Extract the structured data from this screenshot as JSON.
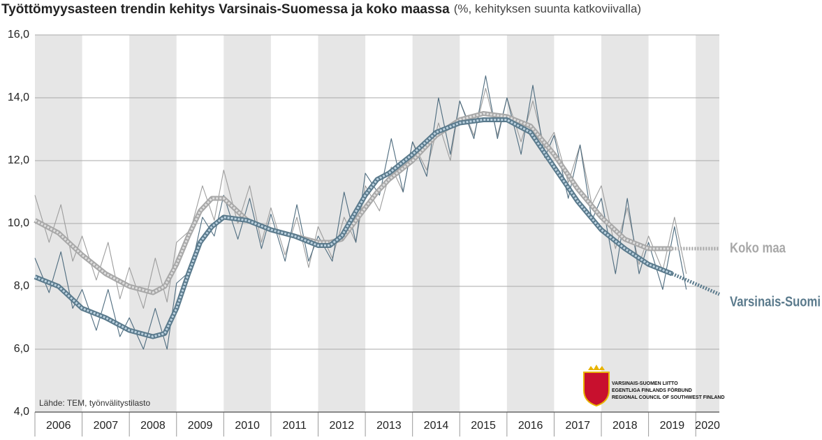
{
  "chart_data": {
    "type": "line",
    "title": "Työttömyysasteen trendin kehitys Varsinais-Suomessa ja koko maassa",
    "subtitle": "(%, kehityksen suunta katkoviivalla)",
    "source": "Lähde: TEM, työnvälitystilasto",
    "logo": [
      "VARSINAIS-SUOMEN LIITTO",
      "EGENTLIGA FINLANDS FÖRBUND",
      "REGIONAL COUNCIL OF SOUTHWEST FINLAND"
    ],
    "xlim": [
      2006,
      2020.5
    ],
    "xticks": [
      2006,
      2007,
      2008,
      2009,
      2010,
      2011,
      2012,
      2013,
      2014,
      2015,
      2016,
      2017,
      2018,
      2019,
      2020
    ],
    "ylim": [
      4,
      16
    ],
    "yticks": [
      {
        "value": 4,
        "label": "4,0"
      },
      {
        "value": 6,
        "label": "6,0"
      },
      {
        "value": 8,
        "label": "8,0"
      },
      {
        "value": 10,
        "label": "10,0"
      },
      {
        "value": 12,
        "label": "12,0"
      },
      {
        "value": 14,
        "label": "14,0"
      },
      {
        "value": 16,
        "label": "16,0"
      }
    ],
    "grid": true,
    "raw_x": [
      2006,
      2006.3,
      2006.55,
      2006.8,
      2007,
      2007.3,
      2007.55,
      2007.8,
      2008,
      2008.3,
      2008.55,
      2008.8,
      2009,
      2009.3,
      2009.55,
      2009.8,
      2010,
      2010.3,
      2010.55,
      2010.8,
      2011,
      2011.3,
      2011.55,
      2011.8,
      2012,
      2012.3,
      2012.55,
      2012.8,
      2013,
      2013.3,
      2013.55,
      2013.8,
      2014,
      2014.3,
      2014.55,
      2014.8,
      2015,
      2015.3,
      2015.55,
      2015.8,
      2016,
      2016.3,
      2016.55,
      2016.8,
      2017,
      2017.3,
      2017.55,
      2017.8,
      2018,
      2018.3,
      2018.55,
      2018.8,
      2019,
      2019.3,
      2019.55,
      2019.8
    ],
    "series": [
      {
        "name": "Koko maa",
        "color": "#a8a8a8",
        "inner_color": "#dedede",
        "raw_color": "#9c9c9c",
        "x": [
          2006,
          2006.5,
          2007,
          2007.5,
          2008,
          2008.5,
          2008.75,
          2009,
          2009.25,
          2009.5,
          2009.75,
          2010,
          2010.5,
          2011,
          2011.5,
          2012,
          2012.25,
          2012.5,
          2013,
          2013.25,
          2013.5,
          2014,
          2014.5,
          2015,
          2015.5,
          2016,
          2016.5,
          2017,
          2017.5,
          2018,
          2018.5,
          2019,
          2019.5
        ],
        "values": [
          10.1,
          9.7,
          9.0,
          8.4,
          8.0,
          7.8,
          8.0,
          8.7,
          9.6,
          10.4,
          10.8,
          10.8,
          10.1,
          9.8,
          9.6,
          9.4,
          9.4,
          9.5,
          10.5,
          11.0,
          11.4,
          12.0,
          12.8,
          13.3,
          13.5,
          13.4,
          13.1,
          12.2,
          11.1,
          10.2,
          9.5,
          9.2,
          9.2
        ],
        "forecast": {
          "x": [
            2019.5,
            2020.5
          ],
          "values": [
            9.2,
            9.2
          ]
        },
        "raw": [
          10.9,
          9.4,
          10.6,
          8.8,
          9.6,
          8.2,
          9.4,
          7.6,
          8.6,
          7.3,
          8.9,
          7.5,
          9.4,
          9.8,
          11.2,
          10.1,
          11.7,
          10.0,
          11.2,
          9.4,
          10.5,
          9.0,
          10.2,
          8.6,
          9.9,
          8.9,
          10.2,
          9.4,
          11.2,
          10.4,
          11.8,
          11.0,
          12.6,
          11.7,
          13.2,
          12.0,
          13.9,
          12.8,
          14.3,
          12.8,
          14.0,
          12.6,
          13.9,
          12.4,
          12.9,
          11.3,
          12.5,
          10.6,
          11.2,
          9.2,
          10.5,
          8.7,
          9.6,
          8.5,
          10.2,
          8.4
        ]
      },
      {
        "name": "Varsinais-Suomi",
        "color": "#5a7a8c",
        "inner_color": "#bcd2e0",
        "raw_color": "#4d6b7e",
        "x": [
          2006,
          2006.5,
          2007,
          2007.5,
          2008,
          2008.5,
          2008.75,
          2009,
          2009.25,
          2009.5,
          2009.75,
          2010,
          2010.5,
          2011,
          2011.5,
          2012,
          2012.25,
          2012.5,
          2013,
          2013.25,
          2013.5,
          2014,
          2014.5,
          2015,
          2015.5,
          2016,
          2016.5,
          2017,
          2017.5,
          2018,
          2018.5,
          2019,
          2019.5
        ],
        "values": [
          8.3,
          8.0,
          7.3,
          7.0,
          6.6,
          6.4,
          6.5,
          7.3,
          8.4,
          9.4,
          9.9,
          10.2,
          10.1,
          9.8,
          9.6,
          9.3,
          9.3,
          9.6,
          10.9,
          11.4,
          11.6,
          12.2,
          12.9,
          13.2,
          13.3,
          13.3,
          12.9,
          11.8,
          10.7,
          9.8,
          9.2,
          8.7,
          8.4
        ],
        "forecast": {
          "x": [
            2019.5,
            2020.5
          ],
          "values": [
            8.4,
            7.75
          ]
        },
        "raw": [
          8.9,
          7.8,
          9.1,
          7.3,
          7.9,
          6.6,
          7.9,
          6.4,
          7.0,
          6.0,
          7.3,
          6.0,
          8.1,
          8.5,
          10.2,
          9.6,
          10.9,
          9.5,
          10.8,
          9.2,
          10.3,
          8.8,
          10.6,
          8.8,
          9.6,
          8.8,
          11.0,
          9.4,
          11.6,
          10.9,
          12.7,
          11.0,
          12.6,
          11.5,
          14.0,
          12.2,
          13.9,
          12.7,
          14.7,
          12.7,
          14.0,
          12.2,
          14.4,
          12.1,
          12.8,
          10.8,
          12.5,
          10.1,
          10.8,
          8.4,
          10.8,
          8.4,
          9.4,
          7.9,
          9.9,
          7.9
        ]
      }
    ]
  }
}
